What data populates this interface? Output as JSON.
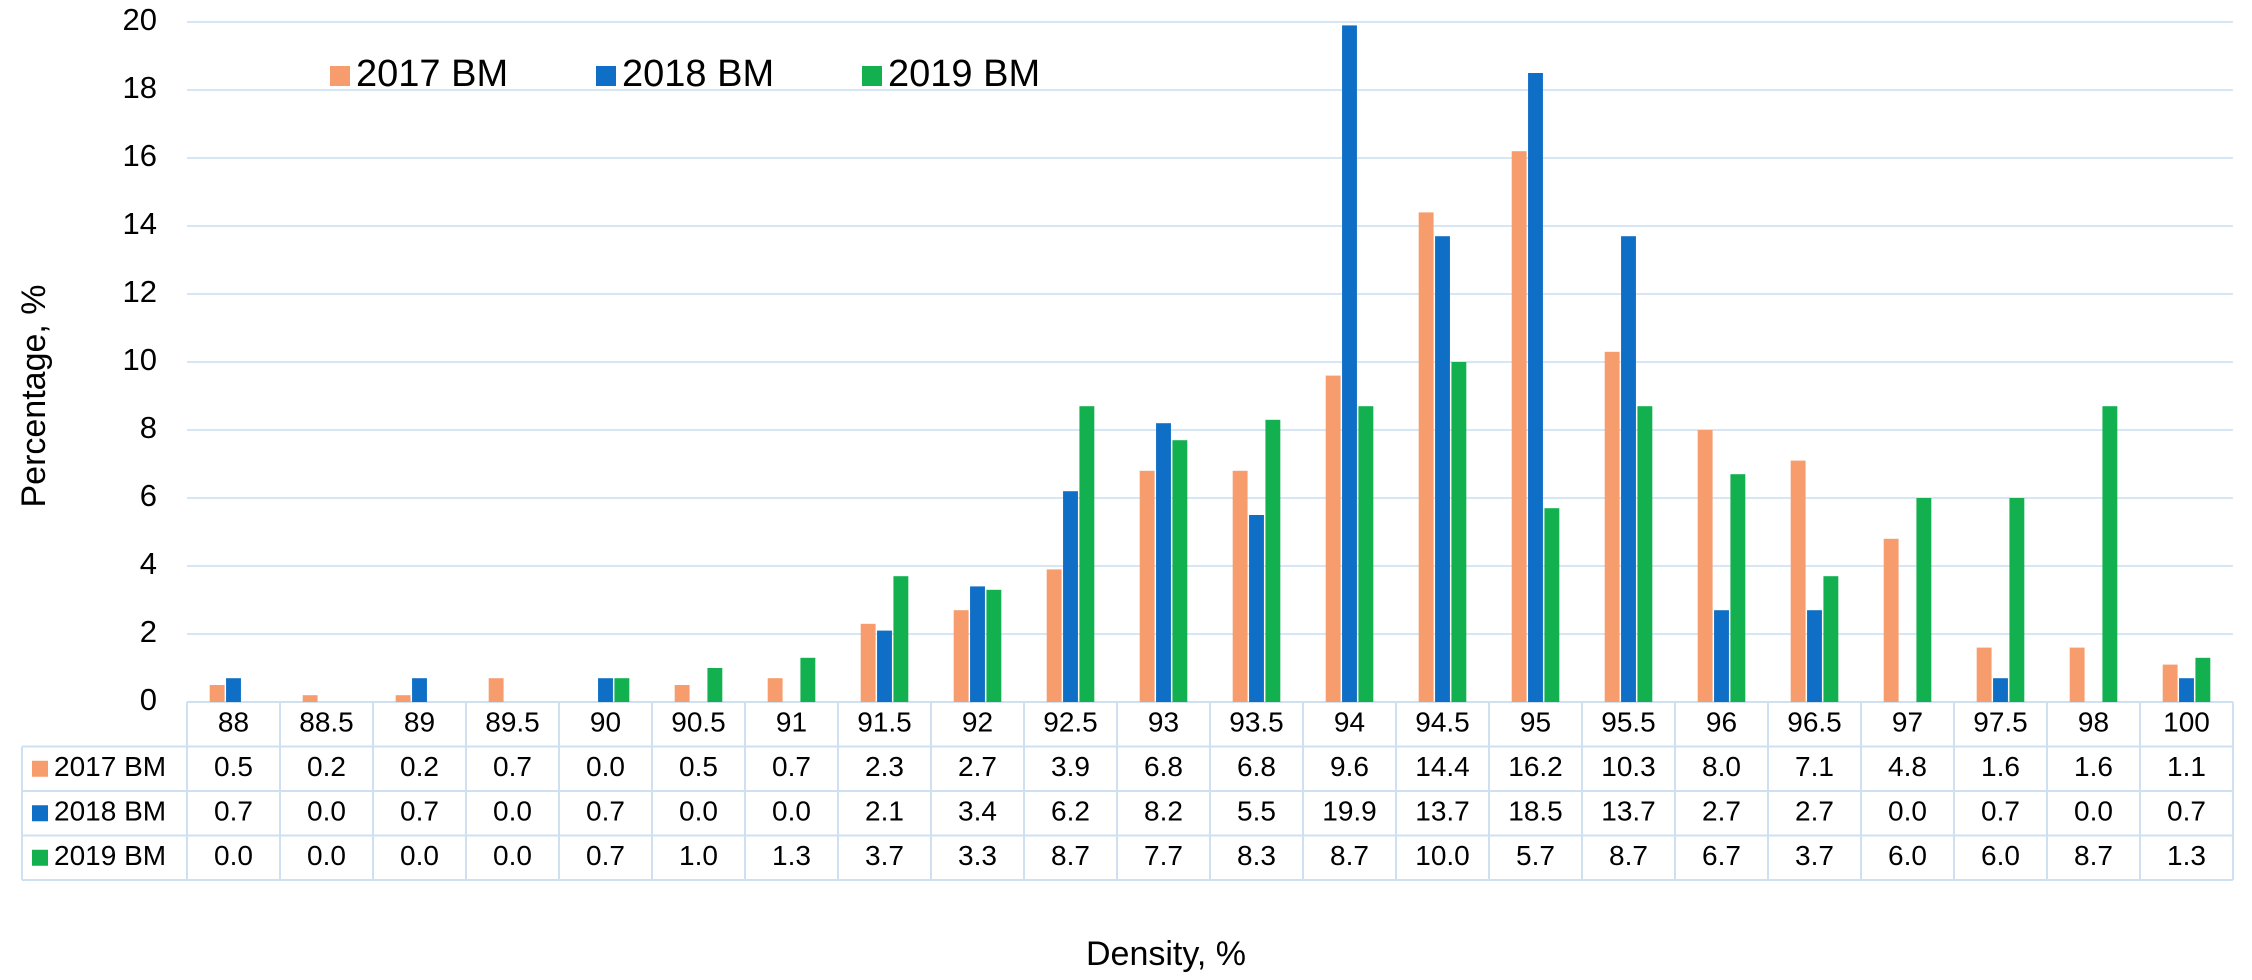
{
  "chart_data": {
    "type": "bar",
    "x_label": "Density, %",
    "y_label": "Percentage, %",
    "categories": [
      "88",
      "88.5",
      "89",
      "89.5",
      "90",
      "90.5",
      "91",
      "91.5",
      "92",
      "92.5",
      "93",
      "93.5",
      "94",
      "94.5",
      "95",
      "95.5",
      "96",
      "96.5",
      "97",
      "97.5",
      "98",
      "100"
    ],
    "series": [
      {
        "name": "2017 BM",
        "color": "#f79c6c",
        "values": [
          0.5,
          0.2,
          0.2,
          0.7,
          0,
          0.5,
          0.7,
          2.3,
          2.7,
          3.9,
          6.8,
          6.8,
          9.6,
          14.4,
          16.2,
          10.3,
          8,
          7.1,
          4.8,
          1.6,
          1.6,
          1.1
        ],
        "value_labels": [
          "0.5",
          "0.2",
          "0.2",
          "0.7",
          "0.0",
          "0.5",
          "0.7",
          "2.3",
          "2.7",
          "3.9",
          "6.8",
          "6.8",
          "9.6",
          "14.4",
          "16.2",
          "10.3",
          "8.0",
          "7.1",
          "4.8",
          "1.6",
          "1.6",
          "1.1"
        ]
      },
      {
        "name": "2018 BM",
        "color": "#0f6fc6",
        "values": [
          0.7,
          0,
          0.7,
          0,
          0.7,
          0,
          0,
          2.1,
          3.4,
          6.2,
          8.2,
          5.5,
          19.9,
          13.7,
          18.5,
          13.7,
          2.7,
          2.7,
          0,
          0.7,
          0,
          0.7
        ],
        "value_labels": [
          "0.7",
          "0.0",
          "0.7",
          "0.0",
          "0.7",
          "0.0",
          "0.0",
          "2.1",
          "3.4",
          "6.2",
          "8.2",
          "5.5",
          "19.9",
          "13.7",
          "18.5",
          "13.7",
          "2.7",
          "2.7",
          "0.0",
          "0.7",
          "0.0",
          "0.7"
        ]
      },
      {
        "name": "2019 BM",
        "color": "#12b04f",
        "values": [
          0,
          0,
          0,
          0,
          0.7,
          1,
          1.3,
          3.7,
          3.3,
          8.7,
          7.7,
          8.3,
          8.7,
          10,
          5.7,
          8.7,
          6.7,
          3.7,
          6,
          6,
          8.7,
          1.3
        ],
        "value_labels": [
          "0.0",
          "0.0",
          "0.0",
          "0.0",
          "0.7",
          "1.0",
          "1.3",
          "3.7",
          "3.3",
          "8.7",
          "7.7",
          "8.3",
          "8.7",
          "10.0",
          "5.7",
          "8.7",
          "6.7",
          "3.7",
          "6.0",
          "6.0",
          "8.7",
          "1.3"
        ]
      }
    ],
    "ylim": [
      0,
      20
    ],
    "yticks": [
      0,
      2,
      4,
      6,
      8,
      10,
      12,
      14,
      16,
      18,
      20
    ],
    "grid": true,
    "legend": "top-left"
  }
}
